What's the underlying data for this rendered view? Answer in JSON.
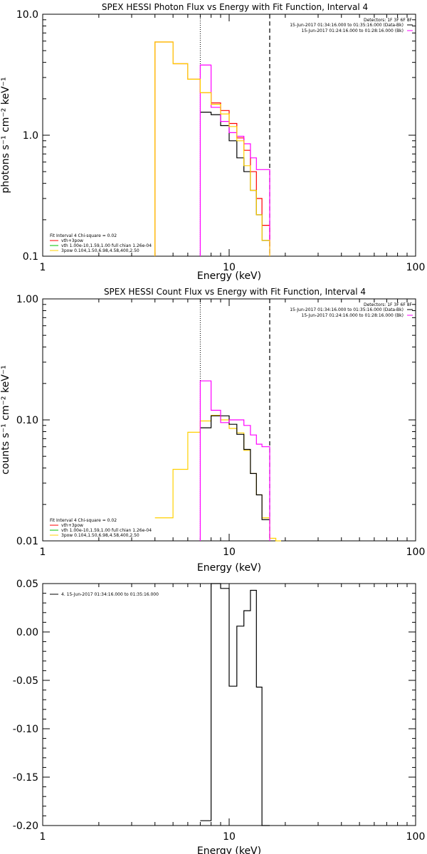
{
  "colors": {
    "data": "#000000",
    "background": "#ff00ff",
    "fit_total": "#ff0000",
    "fit_vth": "#00c000",
    "fit_3pow": "#ffd000"
  },
  "chart_data": [
    {
      "type": "line",
      "title": "SPEX HESSI Photon Flux vs Energy with Fit Function, Interval 4",
      "xlabel": "Energy (keV)",
      "ylabel": "photons s⁻¹ cm⁻² keV⁻¹",
      "xscale": "log",
      "yscale": "log",
      "xlim": [
        1,
        100
      ],
      "ylim": [
        0.1,
        10
      ],
      "xticks": [
        "1",
        "10",
        "100"
      ],
      "yticks": [
        "0.1",
        "1.0",
        "10.0"
      ],
      "vlines": [
        7,
        16.5
      ],
      "legend_top": [
        "Detectors: 1F 3F 6F 8F",
        "15-Jun-2017 01:34:16.000 to 01:35:16.000 (Data-Bk)",
        "15-Jun-2017 01:24:16.000 to 01:28:16.000 (Bk)"
      ],
      "legend_bottom": [
        "Fit Interval 4   Chi-square = 0.02",
        "vth+3pow",
        "vth 1.00e-10,1.59,1.00  full chian 1.26e-04",
        "3pow 0.104,1.50,6.98,4.58,400,2.50"
      ],
      "series": [
        {
          "name": "vth+3pow",
          "color": "fit_total",
          "drop_to_axis": true,
          "edges": [
            4,
            5,
            6,
            7,
            8,
            9,
            10,
            11,
            12,
            13,
            14,
            15,
            16.5
          ],
          "values": [
            5.9,
            3.9,
            2.9,
            2.25,
            1.85,
            1.6,
            1.25,
            0.95,
            0.75,
            0.5,
            0.3,
            0.18,
            0.12
          ]
        },
        {
          "name": "data",
          "color": "data",
          "edges": [
            7,
            8,
            9,
            10,
            11,
            12,
            13,
            14,
            15,
            16.5
          ],
          "values": [
            1.55,
            1.48,
            1.2,
            0.9,
            0.65,
            0.5,
            0.35,
            0.22,
            0.135
          ]
        },
        {
          "name": "bk",
          "color": "background",
          "edges": [
            7,
            8,
            9,
            10,
            11,
            12,
            13,
            14,
            15,
            16.5
          ],
          "values": [
            3.8,
            1.7,
            1.3,
            1.05,
            0.98,
            0.85,
            0.65,
            0.52,
            0.52
          ]
        },
        {
          "name": "3pow",
          "color": "fit_3pow",
          "drop_to_axis": true,
          "edges": [
            4,
            5,
            6,
            7,
            8,
            9,
            10,
            11,
            12,
            13,
            14,
            15,
            16.5
          ],
          "values": [
            5.9,
            3.9,
            2.9,
            2.25,
            1.8,
            1.5,
            1.18,
            0.9,
            0.56,
            0.35,
            0.22,
            0.135,
            0.085
          ]
        }
      ]
    },
    {
      "type": "line",
      "title": "SPEX HESSI Count Flux vs Energy with Fit Function, Interval 4",
      "xlabel": "Energy (keV)",
      "ylabel": "counts s⁻¹ cm⁻² keV⁻¹",
      "xscale": "log",
      "yscale": "log",
      "xlim": [
        1,
        100
      ],
      "ylim": [
        0.01,
        1
      ],
      "xticks": [
        "1",
        "10",
        "100"
      ],
      "yticks": [
        "0.01",
        "0.10",
        "1.00"
      ],
      "vlines": [
        7,
        16.5
      ],
      "legend_top": [
        "Detectors: 1F 3F 6F 8F",
        "15-Jun-2017 01:34:16.000 to 01:35:16.000 (Data-Bk)",
        "15-Jun-2017 01:24:16.000 to 01:28:16.000 (Bk)"
      ],
      "legend_bottom": [
        "Fit Interval 4   Chi-square = 0.02",
        "vth+3pow",
        "vth 1.00e-10,1.59,1.00  full chian 1.26e-04",
        "3pow 0.104,1.50,6.98,4.58,400,2.50"
      ],
      "series": [
        {
          "name": "3pow",
          "color": "fit_3pow",
          "edges": [
            4,
            5,
            6,
            7,
            8,
            9,
            10,
            11,
            12,
            13,
            14,
            15,
            16.5,
            17.8,
            19
          ],
          "values": [
            0.0155,
            0.039,
            0.079,
            0.098,
            0.109,
            0.1,
            0.085,
            0.078,
            0.056,
            0.036,
            0.024,
            0.0155,
            0.0105,
            0.01
          ]
        },
        {
          "name": "data",
          "color": "data",
          "edges": [
            7,
            8,
            9,
            10,
            11,
            12,
            13,
            14,
            15,
            16.5
          ],
          "values": [
            0.086,
            0.108,
            0.108,
            0.092,
            0.076,
            0.057,
            0.036,
            0.024,
            0.015
          ]
        },
        {
          "name": "bk",
          "color": "background",
          "edges": [
            7,
            8,
            9,
            10,
            11,
            12,
            13,
            14,
            15,
            16.5
          ],
          "values": [
            0.21,
            0.12,
            0.095,
            0.1,
            0.1,
            0.09,
            0.075,
            0.063,
            0.06
          ]
        }
      ]
    },
    {
      "type": "line",
      "title": "",
      "xlabel": "Energy (keV)",
      "ylabel": "",
      "xscale": "log",
      "yscale": "linear",
      "xlim": [
        1,
        100
      ],
      "ylim": [
        -0.2,
        0.05
      ],
      "xticks": [
        "1",
        "10",
        "100"
      ],
      "yticks": [
        "-0.20",
        "-0.15",
        "-0.10",
        "-0.05",
        "0.00",
        "0.05"
      ],
      "legend": "4. 15-Jun-2017 01:34:16.000 to 01:35:16.000",
      "series": [
        {
          "name": "4. 15-Jun-2017 01:34:16.000 to 01:35:16.000",
          "color": "data",
          "edges": [
            7,
            8,
            9,
            10,
            11,
            12,
            13,
            14,
            15,
            16.5
          ],
          "values": [
            -0.195,
            0.05,
            0.045,
            -0.056,
            0.006,
            0.022,
            0.043,
            -0.057,
            -0.2
          ]
        }
      ]
    }
  ]
}
